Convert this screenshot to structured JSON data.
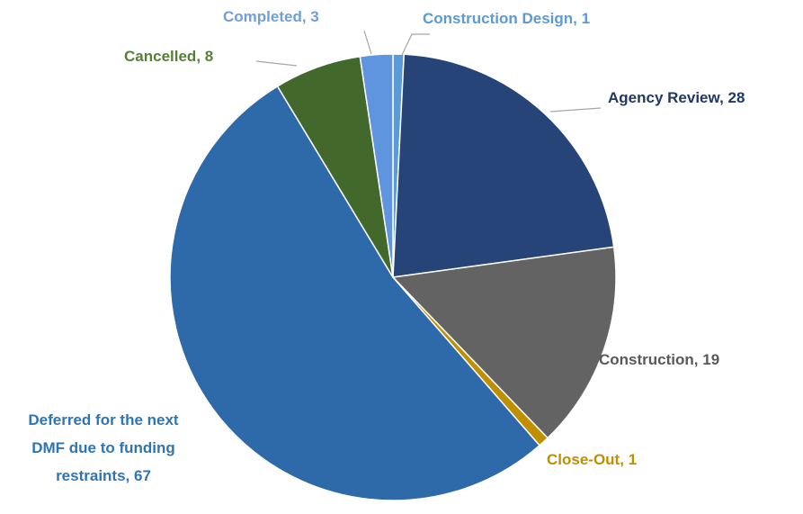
{
  "chart_data": {
    "type": "pie",
    "categories": [
      "Construction Design",
      "Agency Review",
      "Construction",
      "Close-Out",
      "Deferred for the next DMF due to funding restraints",
      "Cancelled",
      "Completed"
    ],
    "values": [
      1,
      28,
      19,
      1,
      67,
      8,
      3
    ],
    "colors": [
      "#5b9bd5",
      "#264478",
      "#636363",
      "#bf8f00",
      "#2e6aaa",
      "#43682b",
      "#5f95de"
    ],
    "label_separator": ", "
  }
}
